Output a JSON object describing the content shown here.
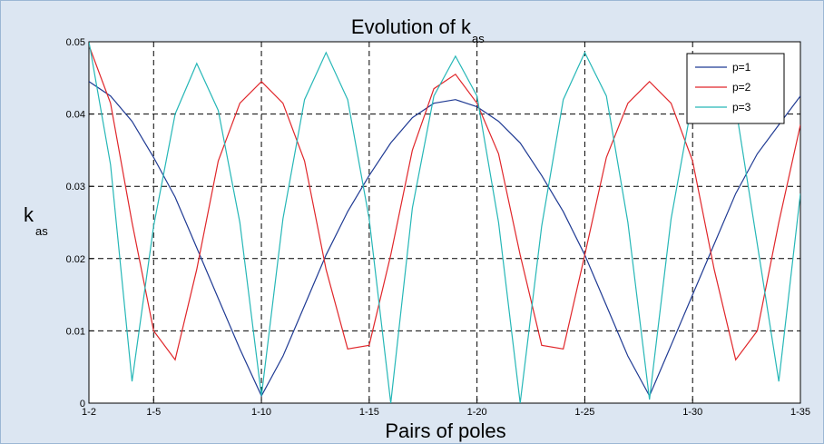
{
  "chart_data": {
    "type": "line",
    "title": "Evolution of k",
    "title_subscript": "as",
    "xlabel": "Pairs of poles",
    "ylabel": "k",
    "ylabel_subscript": "as",
    "x_index_range": [
      2,
      35
    ],
    "ylim": [
      0,
      0.05
    ],
    "y_ticks": [
      "0",
      "0.01",
      "0.02",
      "0.03",
      "0.04",
      "0.05"
    ],
    "y_tick_values": [
      0,
      0.01,
      0.02,
      0.03,
      0.04,
      0.05
    ],
    "x_ticks": [
      "1-2",
      "1-5",
      "1-10",
      "1-15",
      "1-20",
      "1-25",
      "1-30",
      "1-35"
    ],
    "x_tick_values": [
      2,
      5,
      10,
      15,
      20,
      25,
      30,
      35
    ],
    "grid": true,
    "legend_position": "top-right",
    "series": [
      {
        "name": "p=1",
        "color": "#1f3a93",
        "x": [
          2,
          3,
          4,
          5,
          6,
          7,
          8,
          9,
          10,
          11,
          12,
          13,
          14,
          15,
          16,
          17,
          18,
          19,
          20,
          21,
          22,
          23,
          24,
          25,
          26,
          27,
          28,
          29,
          30,
          31,
          32,
          33,
          34,
          35
        ],
        "values": [
          0.0445,
          0.0425,
          0.039,
          0.034,
          0.0285,
          0.0215,
          0.0145,
          0.0075,
          0.001,
          0.0065,
          0.0135,
          0.0205,
          0.0265,
          0.0315,
          0.036,
          0.0395,
          0.0415,
          0.042,
          0.041,
          0.039,
          0.036,
          0.0315,
          0.0265,
          0.0205,
          0.0135,
          0.0065,
          0.001,
          0.008,
          0.015,
          0.022,
          0.029,
          0.0345,
          0.0385,
          0.0425
        ]
      },
      {
        "name": "p=2",
        "color": "#e0262a",
        "x": [
          2,
          3,
          4,
          5,
          6,
          7,
          8,
          9,
          10,
          11,
          12,
          13,
          14,
          15,
          16,
          17,
          18,
          19,
          20,
          21,
          22,
          23,
          24,
          25,
          26,
          27,
          28,
          29,
          30,
          31,
          32,
          33,
          34,
          35
        ],
        "values": [
          0.0495,
          0.0415,
          0.025,
          0.01,
          0.006,
          0.0185,
          0.0335,
          0.0415,
          0.0445,
          0.0415,
          0.0335,
          0.0185,
          0.0075,
          0.008,
          0.0205,
          0.035,
          0.0435,
          0.0455,
          0.0415,
          0.0345,
          0.0205,
          0.008,
          0.0075,
          0.0205,
          0.034,
          0.0415,
          0.0445,
          0.0415,
          0.0335,
          0.0185,
          0.006,
          0.01,
          0.025,
          0.0385
        ]
      },
      {
        "name": "p=3",
        "color": "#26b7b7",
        "x": [
          2,
          3,
          4,
          5,
          6,
          7,
          8,
          9,
          10,
          11,
          12,
          13,
          14,
          15,
          16,
          17,
          18,
          19,
          20,
          21,
          22,
          23,
          24,
          25,
          26,
          27,
          28,
          29,
          30,
          31,
          32,
          33,
          34,
          35
        ],
        "values": [
          0.05,
          0.033,
          0.003,
          0.0245,
          0.04,
          0.047,
          0.0405,
          0.025,
          0.001,
          0.0255,
          0.042,
          0.0485,
          0.042,
          0.0255,
          0.0,
          0.027,
          0.0425,
          0.048,
          0.0425,
          0.025,
          0.0,
          0.0245,
          0.042,
          0.0485,
          0.0425,
          0.025,
          0.0005,
          0.0255,
          0.042,
          0.047,
          0.041,
          0.022,
          0.003,
          0.029
        ]
      }
    ]
  }
}
